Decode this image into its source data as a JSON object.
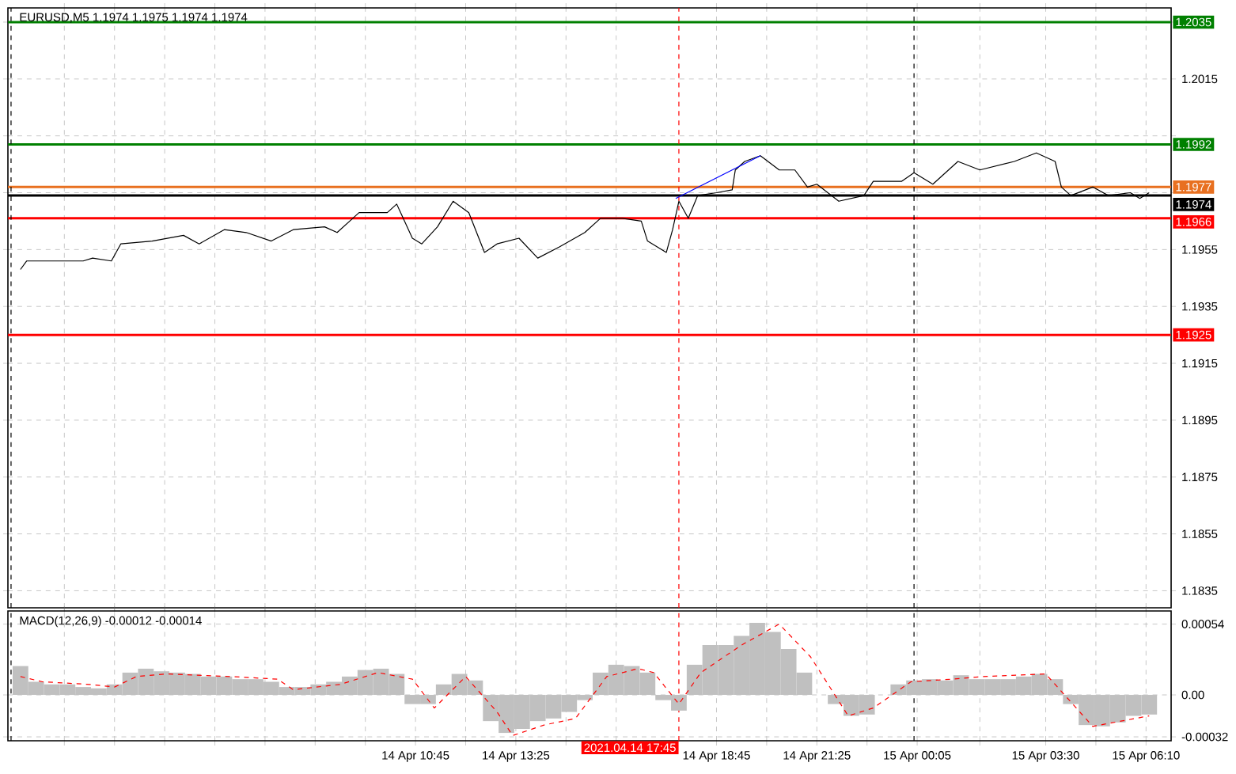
{
  "chart_data": [
    {
      "type": "line",
      "title": "EURUSD,M5  1.1974 1.1975 1.1974 1.1974",
      "series": [
        {
          "color": "#000000",
          "x": [
            "2021-04-14T00:15",
            "2021-04-14T00:25",
            "2021-04-14T01:55",
            "2021-04-14T02:10",
            "2021-04-14T02:40",
            "2021-04-14T02:55",
            "2021-04-14T03:45",
            "2021-04-14T04:35",
            "2021-04-14T05:00",
            "2021-04-14T05:40",
            "2021-04-14T06:15",
            "2021-04-14T06:55",
            "2021-04-14T07:30",
            "2021-04-14T08:20",
            "2021-04-14T08:40",
            "2021-04-14T09:05",
            "2021-04-14T09:15",
            "2021-04-14T10:00",
            "2021-04-14T10:15",
            "2021-04-14T10:40",
            "2021-04-14T10:55",
            "2021-04-14T11:20",
            "2021-04-14T11:45",
            "2021-04-14T12:10",
            "2021-04-14T12:35",
            "2021-04-14T12:55",
            "2021-04-14T13:30",
            "2021-04-14T14:00",
            "2021-04-14T14:35",
            "2021-04-14T15:15",
            "2021-04-14T15:40",
            "2021-04-14T16:15",
            "2021-04-14T16:45",
            "2021-04-14T16:55",
            "2021-04-14T17:25",
            "2021-04-14T17:35",
            "2021-04-14T17:45",
            "2021-04-14T18:00",
            "2021-04-14T18:15",
            "2021-04-14T18:45",
            "2021-04-14T19:10",
            "2021-04-14T19:15",
            "2021-04-14T19:30",
            "2021-04-14T19:55",
            "2021-04-14T20:25",
            "2021-04-14T20:50",
            "2021-04-14T21:10",
            "2021-04-14T21:25",
            "2021-04-14T22:00",
            "2021-04-14T22:40",
            "2021-04-14T22:55",
            "2021-04-14T23:40",
            "2021-04-15T00:00",
            "2021-04-15T00:30",
            "2021-04-15T01:10",
            "2021-04-15T01:45",
            "2021-04-15T02:40",
            "2021-04-15T03:15",
            "2021-04-15T03:45",
            "2021-04-15T03:55",
            "2021-04-15T04:10",
            "2021-04-15T04:45",
            "2021-04-15T05:10",
            "2021-04-15T05:45",
            "2021-04-15T06:00",
            "2021-04-15T06:15"
          ],
          "values": [
            1.1948,
            1.1951,
            1.1951,
            1.1952,
            1.1951,
            1.1957,
            1.1958,
            1.196,
            1.1957,
            1.1962,
            1.1961,
            1.1958,
            1.1962,
            1.1963,
            1.1961,
            1.1966,
            1.1968,
            1.1968,
            1.1971,
            1.1959,
            1.1957,
            1.1963,
            1.1972,
            1.1968,
            1.1954,
            1.1957,
            1.1959,
            1.1952,
            1.1956,
            1.1961,
            1.1966,
            1.1966,
            1.1965,
            1.1958,
            1.1954,
            1.1962,
            1.1972,
            1.1966,
            1.1974,
            1.1975,
            1.1976,
            1.1983,
            1.1986,
            1.1988,
            1.1983,
            1.1983,
            1.1977,
            1.1978,
            1.1972,
            1.1974,
            1.1979,
            1.1979,
            1.1982,
            1.1978,
            1.1986,
            1.1983,
            1.1986,
            1.1989,
            1.1986,
            1.1977,
            1.1974,
            1.1977,
            1.1974,
            1.1975,
            1.1973,
            1.1975
          ]
        },
        {
          "color": "#0000ff",
          "x": [
            "2021-04-14T17:40",
            "2021-04-14T19:55"
          ],
          "values": [
            1.1973,
            1.1988
          ]
        }
      ],
      "xlim": [
        "2021-04-13T23:55",
        "2021-04-15T06:50"
      ],
      "ylim": [
        1.1829,
        1.204
      ],
      "xticks": [
        {
          "value": "2021-04-14T01:25",
          "label": null
        },
        {
          "value": "2021-04-14T02:45",
          "label": null
        },
        {
          "value": "2021-04-14T04:05",
          "label": null
        },
        {
          "value": "2021-04-14T05:25",
          "label": null
        },
        {
          "value": "2021-04-14T06:45",
          "label": null
        },
        {
          "value": "2021-04-14T08:05",
          "label": null
        },
        {
          "value": "2021-04-14T09:25",
          "label": null
        },
        {
          "value": "2021-04-14T10:45",
          "label": null
        },
        {
          "value": "2021-04-14T12:05",
          "label": null
        },
        {
          "value": "2021-04-14T13:25",
          "label": null
        },
        {
          "value": "2021-04-14T14:45",
          "label": null
        },
        {
          "value": "2021-04-14T16:05",
          "label": null
        },
        {
          "value": "2021-04-14T18:45",
          "label": null
        },
        {
          "value": "2021-04-14T20:05",
          "label": null
        },
        {
          "value": "2021-04-14T21:25",
          "label": null
        },
        {
          "value": "2021-04-14T22:45",
          "label": null
        },
        {
          "value": "2021-04-15T00:05",
          "label": null
        },
        {
          "value": "2021-04-15T01:45",
          "label": null
        },
        {
          "value": "2021-04-15T03:30",
          "label": null
        },
        {
          "value": "2021-04-15T04:50",
          "label": null
        },
        {
          "value": "2021-04-15T06:10",
          "label": null
        }
      ],
      "yticks": [
        {
          "value": 1.2035,
          "label": null
        },
        1.2015,
        {
          "value": 1.1995,
          "label": null
        },
        {
          "value": 1.1975,
          "label": null
        },
        1.1955,
        1.1935,
        1.1915,
        1.1895,
        1.1875,
        1.1855,
        1.1835
      ],
      "tick_labels": "y",
      "grid": true,
      "ref_lines": [
        {
          "axis": "y",
          "value": 1.2035,
          "label": "1.2035",
          "color": "#008000"
        },
        {
          "axis": "y",
          "value": 1.1992,
          "label": "1.1992",
          "color": "#008000"
        },
        {
          "axis": "y",
          "value": 1.1977,
          "label": "1.1977",
          "color": "#e87020"
        },
        {
          "axis": "y",
          "value": 1.1974,
          "label": "1.1974",
          "color": "#000000"
        },
        {
          "axis": "y",
          "value": 1.1966,
          "label": "1.1966",
          "color": "#ff0000"
        },
        {
          "axis": "y",
          "value": 1.1925,
          "label": "1.1925",
          "color": "#ff0000"
        },
        {
          "axis": "x",
          "value": "2021-04-14T00:00",
          "color": "#000000",
          "line_style": "dashed"
        },
        {
          "axis": "x",
          "value": "2021-04-15T00:00",
          "color": "#000000",
          "line_style": "dashed"
        },
        {
          "axis": "x",
          "value": "2021-04-14T17:45",
          "color": "#ff0000",
          "line_style": "dashed"
        }
      ]
    },
    {
      "type": "bar",
      "title": "MACD(12,26,9) -0.00012 -0.00014",
      "series": [
        {
          "color": "#c0c0c0",
          "x": [
            "2021-04-14T00:15",
            "2021-04-14T00:40",
            "2021-04-14T01:05",
            "2021-04-14T01:30",
            "2021-04-14T01:55",
            "2021-04-14T02:20",
            "2021-04-14T02:45",
            "2021-04-14T03:10",
            "2021-04-14T03:35",
            "2021-04-14T04:00",
            "2021-04-14T04:25",
            "2021-04-14T04:50",
            "2021-04-14T05:15",
            "2021-04-14T05:40",
            "2021-04-14T06:05",
            "2021-04-14T06:30",
            "2021-04-14T06:55",
            "2021-04-14T07:20",
            "2021-04-14T07:45",
            "2021-04-14T08:10",
            "2021-04-14T08:35",
            "2021-04-14T09:00",
            "2021-04-14T09:25",
            "2021-04-14T09:50",
            "2021-04-14T10:15",
            "2021-04-14T10:40",
            "2021-04-14T11:05",
            "2021-04-14T11:30",
            "2021-04-14T11:55",
            "2021-04-14T12:20",
            "2021-04-14T12:45",
            "2021-04-14T13:10",
            "2021-04-14T13:35",
            "2021-04-14T14:00",
            "2021-04-14T14:25",
            "2021-04-14T14:50",
            "2021-04-14T15:15",
            "2021-04-14T15:40",
            "2021-04-14T16:05",
            "2021-04-14T16:30",
            "2021-04-14T16:55",
            "2021-04-14T17:20",
            "2021-04-14T17:45",
            "2021-04-14T18:10",
            "2021-04-14T18:35",
            "2021-04-14T19:00",
            "2021-04-14T19:25",
            "2021-04-14T19:50",
            "2021-04-14T20:15",
            "2021-04-14T20:40",
            "2021-04-14T21:05",
            "2021-04-14T21:30",
            "2021-04-14T21:55",
            "2021-04-14T22:20",
            "2021-04-14T22:45",
            "2021-04-14T23:10",
            "2021-04-14T23:35",
            "2021-04-15T00:00",
            "2021-04-15T00:25",
            "2021-04-15T00:50",
            "2021-04-15T01:15",
            "2021-04-15T01:40",
            "2021-04-15T02:05",
            "2021-04-15T02:30",
            "2021-04-15T02:55",
            "2021-04-15T03:20",
            "2021-04-15T03:45",
            "2021-04-15T04:10",
            "2021-04-15T04:35",
            "2021-04-15T05:00",
            "2021-04-15T05:25",
            "2021-04-15T05:50",
            "2021-04-15T06:15"
          ],
          "values": [
            0.00022,
            0.0001,
            8e-05,
            8e-05,
            6e-05,
            5e-05,
            8e-05,
            0.00017,
            0.0002,
            0.00018,
            0.00017,
            0.00016,
            0.00014,
            0.00014,
            0.00012,
            0.00012,
            0.0001,
            6e-05,
            6e-05,
            8e-05,
            0.0001,
            0.00014,
            0.00019,
            0.0002,
            0.00016,
            -7e-05,
            -7e-05,
            8e-05,
            0.00016,
            0.00011,
            -0.0002,
            -0.00029,
            -0.00026,
            -0.0002,
            -0.00018,
            -0.00013,
            -4e-05,
            0.00017,
            0.00023,
            0.00022,
            0.00017,
            -4e-05,
            -0.00012,
            0.00023,
            0.00038,
            0.00038,
            0.00045,
            0.00055,
            0.00048,
            0.00035,
            0.00017,
            0,
            -7e-05,
            -0.00016,
            -0.00015,
            null,
            8e-05,
            0.00011,
            0.00012,
            0.00011,
            0.00015,
            0.00012,
            0.00012,
            0.00012,
            0.00014,
            0.00016,
            0.00012,
            -7e-05,
            -0.00023,
            -0.00024,
            -0.00021,
            -0.00016,
            -0.00015
          ]
        },
        {
          "type": "line",
          "color": "#ff0000",
          "line_style": "dashed",
          "x": [
            "2021-04-14T00:15",
            "2021-04-14T00:50",
            "2021-04-14T02:05",
            "2021-04-14T02:45",
            "2021-04-14T03:20",
            "2021-04-14T04:10",
            "2021-04-14T05:50",
            "2021-04-14T07:05",
            "2021-04-14T07:30",
            "2021-04-14T08:45",
            "2021-04-14T09:45",
            "2021-04-14T10:40",
            "2021-04-14T11:15",
            "2021-04-14T12:05",
            "2021-04-14T12:55",
            "2021-04-14T13:20",
            "2021-04-14T14:10",
            "2021-04-14T15:00",
            "2021-04-14T15:50",
            "2021-04-14T16:40",
            "2021-04-14T17:05",
            "2021-04-14T17:45",
            "2021-04-14T18:20",
            "2021-04-14T19:25",
            "2021-04-14T20:25",
            "2021-04-14T21:15",
            "2021-04-14T22:15",
            "2021-04-14T22:55",
            "2021-04-14T23:55",
            "2021-04-15T01:00",
            "2021-04-15T01:50",
            "2021-04-15T03:30",
            "2021-04-15T04:45",
            "2021-04-15T06:15"
          ],
          "values": [
            0.00014,
            0.0001,
            8e-05,
            6e-05,
            0.00014,
            0.00016,
            0.00014,
            0.00012,
            4e-05,
            8e-05,
            0.00017,
            0.00012,
            -0.0001,
            0.00014,
            -0.00013,
            -0.00031,
            -0.00023,
            -0.00018,
            0.00014,
            0.0002,
            0.00017,
            -7e-05,
            0.00017,
            0.00038,
            0.00054,
            0.00029,
            -0.00016,
            -0.0001,
            0.0001,
            0.00012,
            0.00014,
            0.00016,
            -0.00024,
            -0.00016
          ]
        }
      ],
      "xlim": [
        "2021-04-13T23:55",
        "2021-04-15T06:50"
      ],
      "ylim": [
        -0.00035,
        0.00064
      ],
      "xticks": [
        {
          "value": "2021-04-14T01:25",
          "label": null
        },
        {
          "value": "2021-04-14T02:45",
          "label": null
        },
        {
          "value": "2021-04-14T04:05",
          "label": null
        },
        {
          "value": "2021-04-14T05:25",
          "label": null
        },
        {
          "value": "2021-04-14T06:45",
          "label": null
        },
        {
          "value": "2021-04-14T08:05",
          "label": null
        },
        {
          "value": "2021-04-14T09:25",
          "label": null
        },
        {
          "value": "2021-04-14T10:45",
          "label": "14 Apr 10:45"
        },
        {
          "value": "2021-04-14T12:05",
          "label": null
        },
        {
          "value": "2021-04-14T13:25",
          "label": "14 Apr 13:25"
        },
        {
          "value": "2021-04-14T14:45",
          "label": null
        },
        {
          "value": "2021-04-14T16:05",
          "label": null
        },
        {
          "value": "2021-04-14T18:45",
          "label": "14 Apr 18:45"
        },
        {
          "value": "2021-04-14T20:05",
          "label": null
        },
        {
          "value": "2021-04-14T21:25",
          "label": "14 Apr 21:25"
        },
        {
          "value": "2021-04-14T22:45",
          "label": null
        },
        {
          "value": "2021-04-15T00:05",
          "label": "15 Apr 00:05"
        },
        {
          "value": "2021-04-15T01:45",
          "label": null
        },
        {
          "value": "2021-04-15T03:30",
          "label": "15 Apr 03:30"
        },
        {
          "value": "2021-04-15T04:50",
          "label": null
        },
        {
          "value": "2021-04-15T06:10",
          "label": "15 Apr 06:10"
        }
      ],
      "yticks": [
        -0.00032,
        {
          "value": 0,
          "label": "0.00"
        },
        0.00054
      ],
      "grid": true,
      "ref_lines": [
        {
          "axis": "x",
          "value": "2021-04-14T00:00",
          "color": "#000000",
          "line_style": "dashed"
        },
        {
          "axis": "x",
          "value": "2021-04-15T00:00",
          "color": "#000000",
          "line_style": "dashed"
        },
        {
          "axis": "x",
          "value": "2021-04-14T17:45",
          "label": "2021.04.14 17:45",
          "color": "#ff0000",
          "line_style": "dashed"
        }
      ]
    }
  ]
}
